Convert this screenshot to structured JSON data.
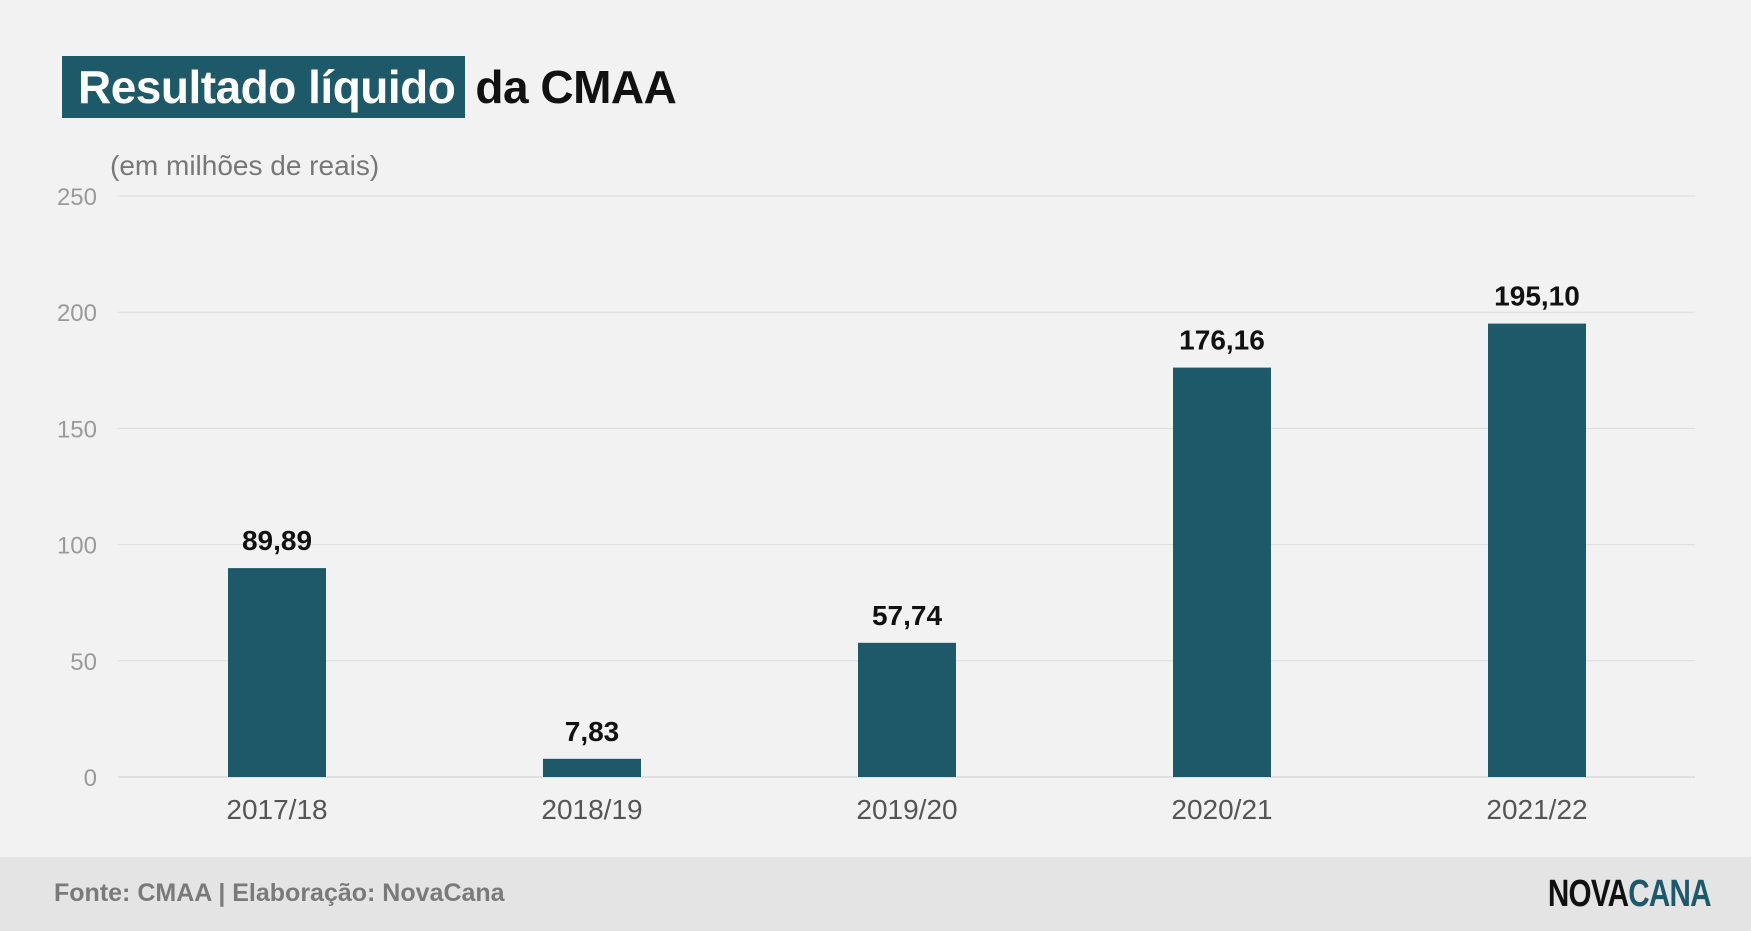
{
  "title": {
    "highlight": "Resultado líquido",
    "rest": "da CMAA"
  },
  "subtitle": "(em milhões de reais)",
  "footer": {
    "source": "Fonte: CMAA | Elaboração: NovaCana",
    "logo_part1": "NOVA",
    "logo_part2": "CANA"
  },
  "colors": {
    "bar": "#1e596a",
    "background": "#f2f2f2",
    "grid": "#dcdcdc",
    "tick_label": "#9a9a9a",
    "category_label": "#555555",
    "value_label": "#111111"
  },
  "chart_data": {
    "type": "bar",
    "categories": [
      "2017/18",
      "2018/19",
      "2019/20",
      "2020/21",
      "2021/22"
    ],
    "values": [
      89.89,
      7.83,
      57.74,
      176.16,
      195.1
    ],
    "value_labels": [
      "89,89",
      "7,83",
      "57,74",
      "176,16",
      "195,10"
    ],
    "title": "Resultado líquido da CMAA",
    "ylabel": "(em milhões de reais)",
    "xlabel": "",
    "ylim": [
      0,
      250
    ],
    "yticks": [
      0,
      50,
      100,
      150,
      200,
      250
    ],
    "grid": true
  }
}
